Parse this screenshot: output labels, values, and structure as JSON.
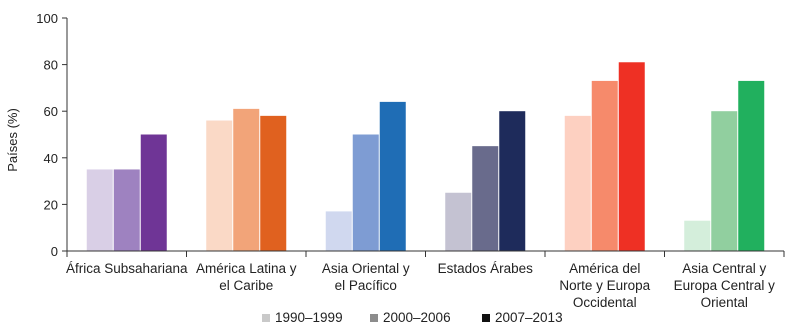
{
  "chart_data": {
    "type": "bar",
    "ylabel": "Países (%)",
    "ylim": [
      0,
      100
    ],
    "yticks": [
      "0",
      "20",
      "40",
      "60",
      "80",
      "100"
    ],
    "categories": [
      [
        "África Subsahariana"
      ],
      [
        "América Latina y",
        "el Caribe"
      ],
      [
        "Asia Oriental y",
        "el Pacífico"
      ],
      [
        "Estados Árabes"
      ],
      [
        "América del",
        "Norte y Europa",
        "Occidental"
      ],
      [
        "Asia Central y",
        "Europa Central y",
        "Oriental"
      ]
    ],
    "series": [
      {
        "name": "1990–1999",
        "values": [
          35,
          56,
          17,
          25,
          58,
          13
        ]
      },
      {
        "name": "2000–2006",
        "values": [
          35,
          61,
          50,
          45,
          73,
          60
        ]
      },
      {
        "name": "2007–2013",
        "values": [
          50,
          58,
          64,
          60,
          81,
          73
        ]
      }
    ],
    "bar_colors": [
      [
        "#d9cfe6",
        "#9e82c0",
        "#6f3596"
      ],
      [
        "#fad9c6",
        "#f2a479",
        "#e0611f"
      ],
      [
        "#d0d8ef",
        "#7e9cd3",
        "#1f6db5"
      ],
      [
        "#c4c2d2",
        "#696b8c",
        "#1e2b5b"
      ],
      [
        "#fdd0c1",
        "#f68a6b",
        "#ee3024"
      ],
      [
        "#d4eedb",
        "#91cf9f",
        "#21b05e"
      ]
    ],
    "legend_colors": [
      "#c9c9c9",
      "#8c8c8c",
      "#111111"
    ],
    "legend_position": "bottom",
    "grid": false
  }
}
